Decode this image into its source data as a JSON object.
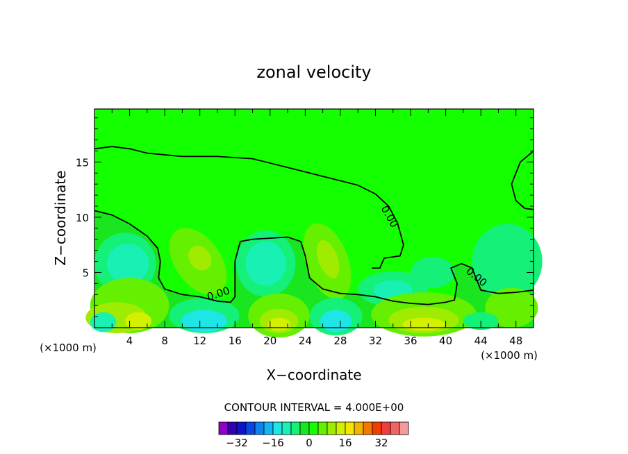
{
  "chart_data": {
    "type": "heatmap",
    "title": "zonal velocity",
    "xlabel": "X−coordinate",
    "ylabel": "Z−coordinate",
    "x_unit_left": "(×1000 m)",
    "x_unit_right": "(×1000 m)",
    "xlim": [
      0,
      50
    ],
    "ylim": [
      0,
      19.8
    ],
    "xticks": [
      4,
      8,
      12,
      16,
      20,
      24,
      28,
      32,
      36,
      40,
      44,
      48
    ],
    "yticks": [
      5,
      10,
      15
    ],
    "contour_interval_label": "CONTOUR INTERVAL = 4.000E+00",
    "zero_contour_labels": [
      "0.00",
      "0.00",
      "0.00"
    ],
    "colorbar": {
      "tick_labels": [
        "−32",
        "−16",
        "0",
        "16",
        "32"
      ],
      "tick_values": [
        -32,
        -16,
        0,
        16,
        32
      ],
      "levels": [
        -36,
        -32,
        -28,
        -24,
        -20,
        -16,
        -12,
        -8,
        -4,
        0,
        4,
        8,
        12,
        16,
        20,
        24,
        28,
        32,
        36,
        40
      ],
      "colors": [
        "#8c00c8",
        "#3200b4",
        "#0a14c8",
        "#0a46e6",
        "#0f82f0",
        "#14b4f5",
        "#1ee6e6",
        "#19f0b4",
        "#14f078",
        "#19e61e",
        "#14ff00",
        "#64f000",
        "#a0ec00",
        "#d2f000",
        "#f5e600",
        "#f0b400",
        "#f57800",
        "#f53c00",
        "#f03c3c",
        "#f06464",
        "#f59a9a"
      ]
    },
    "background_color": "#14ff00"
  }
}
